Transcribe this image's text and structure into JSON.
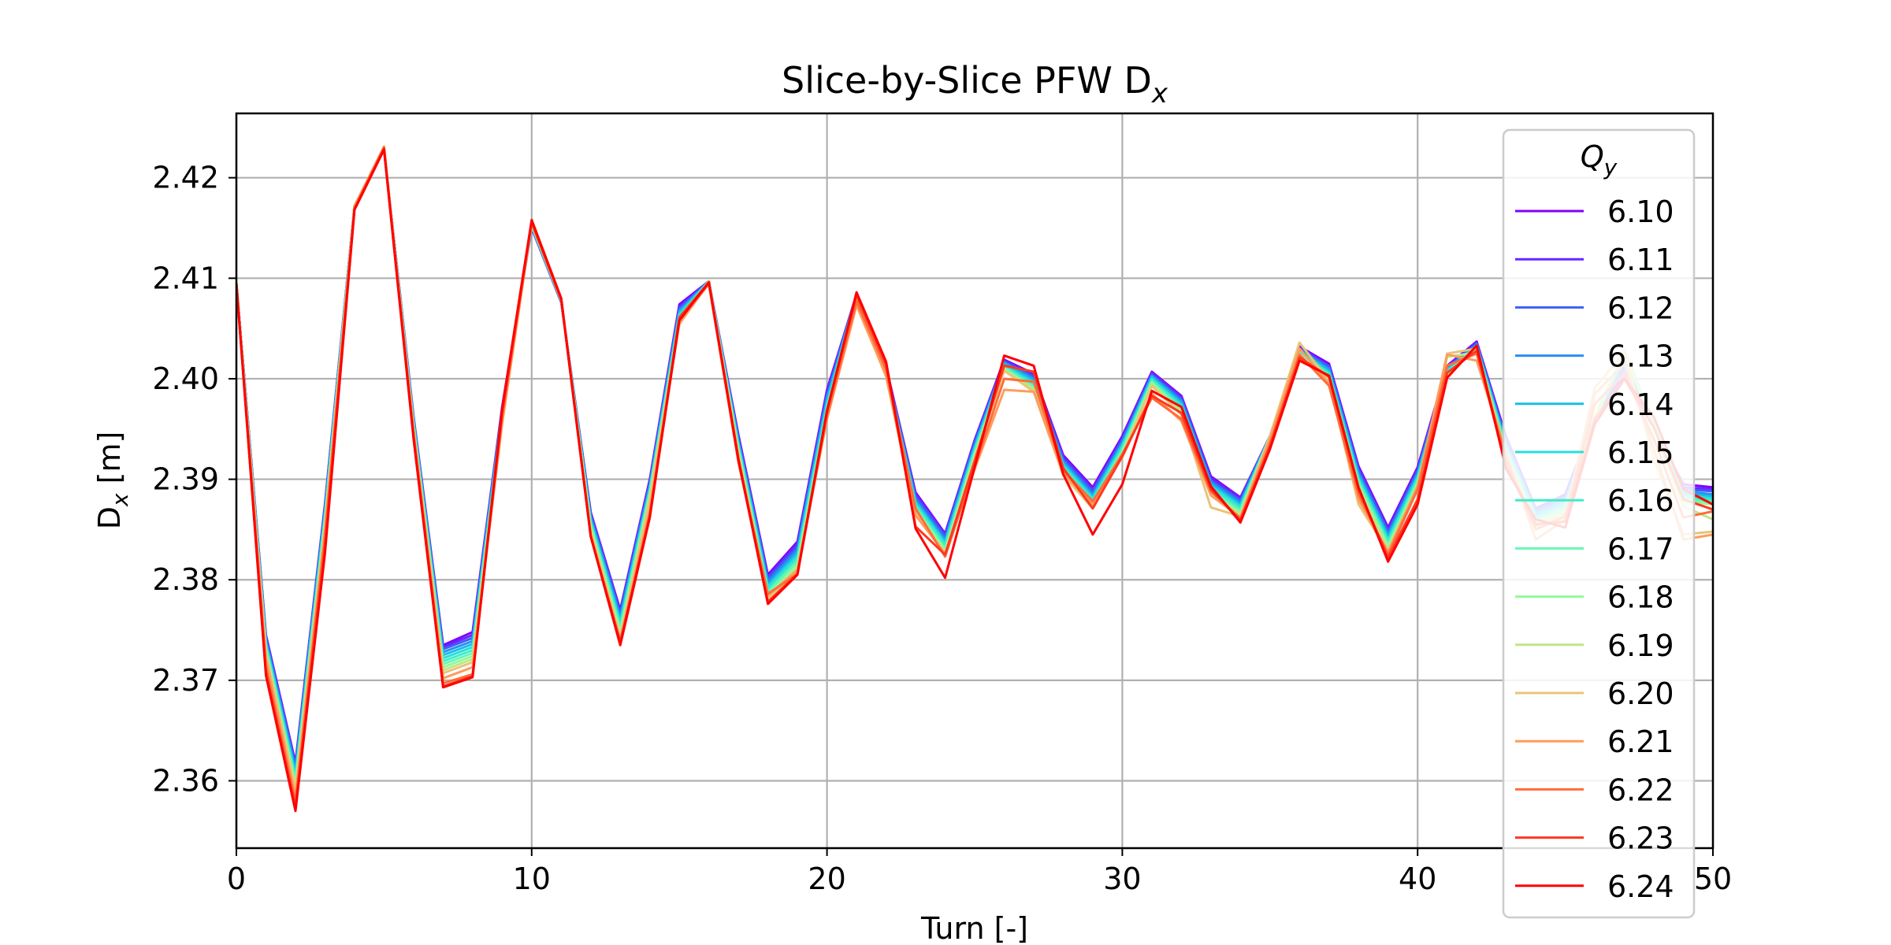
{
  "chart_data": {
    "type": "line",
    "title": "Slice-by-Slice PFW D",
    "title_sub": "x",
    "xlabel": "Turn [-]",
    "ylabel_main": "D",
    "ylabel_sub": "x",
    "ylabel_unit": " [m]",
    "xlim": [
      0,
      50
    ],
    "ylim": [
      2.3533,
      2.4264
    ],
    "xticks": [
      0,
      10,
      20,
      30,
      40,
      50
    ],
    "yticks": [
      2.36,
      2.37,
      2.38,
      2.39,
      2.4,
      2.41,
      2.42
    ],
    "ytick_labels": [
      "2.36",
      "2.37",
      "2.38",
      "2.39",
      "2.40",
      "2.41",
      "2.42"
    ],
    "grid": true,
    "legend": {
      "title_main": "Q",
      "title_sub": "y",
      "placement": "top-right"
    },
    "x": [
      0,
      1,
      2,
      3,
      4,
      5,
      6,
      7,
      8,
      9,
      10,
      11,
      12,
      13,
      14,
      15,
      16,
      17,
      18,
      19,
      20,
      21,
      22,
      23,
      24,
      25,
      26,
      27,
      28,
      29,
      30,
      31,
      32,
      33,
      34,
      35,
      36,
      37,
      38,
      39,
      40,
      41,
      42,
      43,
      44,
      45,
      46,
      47,
      48,
      49,
      50
    ],
    "series": [
      {
        "name": "6.10",
        "color": "#8000ff",
        "values": [
          2.4095,
          2.3745,
          2.3618,
          2.3875,
          2.4172,
          2.4228,
          2.3962,
          2.3735,
          2.3748,
          2.3972,
          2.415,
          2.4076,
          2.3867,
          2.377,
          2.39,
          2.4074,
          2.4097,
          2.3944,
          2.3805,
          2.3838,
          2.3989,
          2.4084,
          2.4012,
          2.3887,
          2.3846,
          2.3939,
          2.4019,
          2.4005,
          2.3924,
          2.3892,
          2.3943,
          2.4007,
          2.3983,
          2.3903,
          2.3882,
          2.3943,
          2.4032,
          2.4015,
          2.3913,
          2.3852,
          2.3912,
          2.4013,
          2.4037,
          2.3942,
          2.3871,
          2.3885,
          2.3962,
          2.4001,
          2.3951,
          2.3895,
          2.3892
        ]
      },
      {
        "name": "6.11",
        "color": "#6a25fe",
        "values": [
          2.4095,
          2.3744,
          2.3617,
          2.3874,
          2.4172,
          2.4228,
          2.3961,
          2.3733,
          2.3745,
          2.3971,
          2.415,
          2.4076,
          2.3866,
          2.3769,
          2.3898,
          2.4072,
          2.4097,
          2.3942,
          2.3803,
          2.3836,
          2.3987,
          2.4084,
          2.4011,
          2.3885,
          2.3845,
          2.3938,
          2.4018,
          2.4004,
          2.3922,
          2.389,
          2.3941,
          2.4006,
          2.3982,
          2.3901,
          2.3881,
          2.3943,
          2.4031,
          2.4013,
          2.3911,
          2.385,
          2.391,
          2.4012,
          2.4036,
          2.394,
          2.387,
          2.3883,
          2.3961,
          2.4006,
          2.3952,
          2.3892,
          2.389
        ]
      },
      {
        "name": "6.12",
        "color": "#3e5ef8",
        "values": [
          2.4095,
          2.3742,
          2.3614,
          2.3872,
          2.4172,
          2.4229,
          2.396,
          2.3731,
          2.3742,
          2.397,
          2.4151,
          2.4077,
          2.3864,
          2.3766,
          2.3896,
          2.407,
          2.4097,
          2.394,
          2.3801,
          2.3833,
          2.3984,
          2.4084,
          2.401,
          2.3883,
          2.3843,
          2.3936,
          2.4017,
          2.4002,
          2.392,
          2.3888,
          2.3939,
          2.4004,
          2.398,
          2.3899,
          2.3879,
          2.3943,
          2.403,
          2.4012,
          2.3909,
          2.3848,
          2.3908,
          2.4011,
          2.4035,
          2.3938,
          2.3869,
          2.3881,
          2.3961,
          2.4011,
          2.3953,
          2.389,
          2.3888
        ]
      },
      {
        "name": "6.13",
        "color": "#2a8ef0",
        "values": [
          2.4095,
          2.374,
          2.3611,
          2.3869,
          2.4172,
          2.4229,
          2.3958,
          2.3728,
          2.3739,
          2.3968,
          2.4151,
          2.4077,
          2.3862,
          2.3763,
          2.3894,
          2.4068,
          2.4097,
          2.3938,
          2.3798,
          2.383,
          2.3981,
          2.4084,
          2.4009,
          2.388,
          2.384,
          2.3934,
          2.4016,
          2.4,
          2.3918,
          2.3885,
          2.3937,
          2.4003,
          2.3978,
          2.3897,
          2.3877,
          2.3943,
          2.4029,
          2.401,
          2.3906,
          2.3845,
          2.3906,
          2.401,
          2.4034,
          2.3936,
          2.3867,
          2.3879,
          2.396,
          2.4015,
          2.3954,
          2.3888,
          2.3885
        ]
      },
      {
        "name": "6.14",
        "color": "#18bde6",
        "values": [
          2.4095,
          2.3738,
          2.3608,
          2.3867,
          2.4172,
          2.4229,
          2.3957,
          2.3725,
          2.3736,
          2.3967,
          2.4152,
          2.4077,
          2.386,
          2.376,
          2.3892,
          2.4066,
          2.4097,
          2.3936,
          2.3795,
          2.3827,
          2.3978,
          2.4084,
          2.4008,
          2.3878,
          2.3838,
          2.3932,
          2.4015,
          2.3998,
          2.3916,
          2.3883,
          2.3935,
          2.4002,
          2.3976,
          2.3895,
          2.3875,
          2.3943,
          2.4028,
          2.4008,
          2.3904,
          2.3843,
          2.3904,
          2.4009,
          2.4033,
          2.3934,
          2.3865,
          2.3877,
          2.396,
          2.4019,
          2.3955,
          2.3886,
          2.3883
        ]
      },
      {
        "name": "6.15",
        "color": "#2adddd",
        "values": [
          2.4095,
          2.3736,
          2.3605,
          2.3864,
          2.4172,
          2.4229,
          2.3956,
          2.3722,
          2.3733,
          2.3965,
          2.4152,
          2.4077,
          2.3858,
          2.3757,
          2.389,
          2.4064,
          2.4097,
          2.3934,
          2.3793,
          2.3824,
          2.3975,
          2.4084,
          2.4007,
          2.3876,
          2.3836,
          2.393,
          2.4013,
          2.3996,
          2.3914,
          2.3881,
          2.3933,
          2.4,
          2.3974,
          2.3893,
          2.3873,
          2.3943,
          2.4027,
          2.4006,
          2.3901,
          2.384,
          2.3902,
          2.4008,
          2.4032,
          2.3932,
          2.3863,
          2.3875,
          2.396,
          2.4023,
          2.3955,
          2.3884,
          2.3881
        ]
      },
      {
        "name": "6.16",
        "color": "#40ecc8",
        "values": [
          2.4095,
          2.3734,
          2.3602,
          2.3862,
          2.4172,
          2.423,
          2.3954,
          2.3719,
          2.373,
          2.3964,
          2.4153,
          2.4078,
          2.3856,
          2.3754,
          2.3888,
          2.4062,
          2.4097,
          2.3932,
          2.379,
          2.3821,
          2.3972,
          2.4084,
          2.4006,
          2.3874,
          2.3834,
          2.3928,
          2.4012,
          2.3994,
          2.3912,
          2.3879,
          2.3931,
          2.3999,
          2.3972,
          2.3891,
          2.3871,
          2.3943,
          2.4026,
          2.4005,
          2.3899,
          2.3838,
          2.39,
          2.4007,
          2.4031,
          2.393,
          2.3861,
          2.3873,
          2.396,
          2.4026,
          2.3956,
          2.3882,
          2.3879
        ]
      },
      {
        "name": "6.17",
        "color": "#66f7b4",
        "values": [
          2.4095,
          2.3732,
          2.3599,
          2.3859,
          2.4172,
          2.423,
          2.3953,
          2.3716,
          2.3727,
          2.3962,
          2.4153,
          2.4078,
          2.3854,
          2.3751,
          2.3886,
          2.406,
          2.4097,
          2.393,
          2.3788,
          2.3818,
          2.3969,
          2.4084,
          2.4005,
          2.3872,
          2.3831,
          2.3926,
          2.4011,
          2.3992,
          2.391,
          2.3877,
          2.3929,
          2.3997,
          2.397,
          2.3888,
          2.3869,
          2.3943,
          2.4025,
          2.4003,
          2.3897,
          2.3835,
          2.3898,
          2.4006,
          2.403,
          2.3928,
          2.3859,
          2.3871,
          2.396,
          2.4028,
          2.3956,
          2.388,
          2.3877
        ]
      },
      {
        "name": "6.18",
        "color": "#92f998",
        "values": [
          2.4095,
          2.373,
          2.3596,
          2.3857,
          2.4172,
          2.423,
          2.3952,
          2.3713,
          2.3724,
          2.396,
          2.4154,
          2.4078,
          2.3852,
          2.3748,
          2.3884,
          2.4058,
          2.4097,
          2.3928,
          2.3785,
          2.3815,
          2.3966,
          2.4084,
          2.4004,
          2.387,
          2.3829,
          2.3924,
          2.401,
          2.399,
          2.3908,
          2.3875,
          2.3927,
          2.3996,
          2.3968,
          2.3886,
          2.3867,
          2.3943,
          2.4024,
          2.4001,
          2.3894,
          2.3833,
          2.3896,
          2.4005,
          2.4029,
          2.3926,
          2.3857,
          2.3869,
          2.396,
          2.4029,
          2.3957,
          2.3878,
          2.3875
        ]
      },
      {
        "name": "6.19",
        "color": "#c0e586",
        "values": [
          2.4095,
          2.3728,
          2.3593,
          2.3854,
          2.4172,
          2.423,
          2.395,
          2.371,
          2.3721,
          2.3959,
          2.4154,
          2.4078,
          2.385,
          2.3745,
          2.3882,
          2.4056,
          2.4097,
          2.3926,
          2.3783,
          2.3812,
          2.3963,
          2.4084,
          2.4003,
          2.3868,
          2.3827,
          2.3922,
          2.4009,
          2.3989,
          2.3906,
          2.3873,
          2.3925,
          2.3994,
          2.3966,
          2.3884,
          2.3865,
          2.3943,
          2.4023,
          2.4,
          2.3892,
          2.383,
          2.3894,
          2.4022,
          2.4026,
          2.3924,
          2.3855,
          2.3867,
          2.3963,
          2.4027,
          2.395,
          2.3873,
          2.386
        ]
      },
      {
        "name": "6.20",
        "color": "#e8c478",
        "values": [
          2.4095,
          2.3726,
          2.359,
          2.3852,
          2.4172,
          2.4231,
          2.3949,
          2.3707,
          2.3718,
          2.3957,
          2.4155,
          2.4079,
          2.3848,
          2.3742,
          2.388,
          2.4054,
          2.4097,
          2.3924,
          2.378,
          2.3809,
          2.396,
          2.4076,
          2.4002,
          2.3866,
          2.3825,
          2.392,
          2.4008,
          2.3987,
          2.3904,
          2.3871,
          2.3923,
          2.3993,
          2.3964,
          2.3872,
          2.3863,
          2.3943,
          2.4036,
          2.3998,
          2.3875,
          2.3828,
          2.3892,
          2.4025,
          2.403,
          2.3922,
          2.3853,
          2.3865,
          2.3991,
          2.4026,
          2.392,
          2.3845,
          2.3848
        ]
      },
      {
        "name": "6.21",
        "color": "#ff9c5c",
        "values": [
          2.4095,
          2.3722,
          2.3584,
          2.3848,
          2.4171,
          2.4231,
          2.3947,
          2.3702,
          2.3713,
          2.3955,
          2.4155,
          2.4079,
          2.3845,
          2.374,
          2.387,
          2.4055,
          2.4095,
          2.392,
          2.3784,
          2.381,
          2.396,
          2.4073,
          2.4003,
          2.3864,
          2.3826,
          2.391,
          2.3989,
          2.3987,
          2.3906,
          2.3875,
          2.3922,
          2.3985,
          2.3958,
          2.3884,
          2.3862,
          2.394,
          2.403,
          2.3995,
          2.388,
          2.3828,
          2.3893,
          2.4024,
          2.4018,
          2.3925,
          2.384,
          2.386,
          2.3985,
          2.4015,
          2.393,
          2.384,
          2.3845
        ]
      },
      {
        "name": "6.22",
        "color": "#ff6c3a",
        "values": [
          2.4095,
          2.3714,
          2.3579,
          2.3842,
          2.417,
          2.423,
          2.3945,
          2.3697,
          2.3706,
          2.3962,
          2.4155,
          2.4078,
          2.3843,
          2.3738,
          2.3865,
          2.406,
          2.4094,
          2.3917,
          2.3786,
          2.3806,
          2.3963,
          2.4077,
          2.4009,
          2.3871,
          2.3823,
          2.3912,
          2.4,
          2.3997,
          2.3909,
          2.3878,
          2.3925,
          2.3981,
          2.396,
          2.3888,
          2.3861,
          2.3935,
          2.4024,
          2.3993,
          2.3885,
          2.3825,
          2.389,
          2.4013,
          2.4025,
          2.392,
          2.385,
          2.3863,
          2.3975,
          2.4005,
          2.394,
          2.3862,
          2.3868
        ]
      },
      {
        "name": "6.23",
        "color": "#ff3820",
        "values": [
          2.4095,
          2.3708,
          2.3574,
          2.3834,
          2.4169,
          2.4229,
          2.3943,
          2.3694,
          2.3704,
          2.3966,
          2.4156,
          2.4079,
          2.3843,
          2.3738,
          2.3864,
          2.4061,
          2.4096,
          2.3918,
          2.3778,
          2.3806,
          2.3968,
          2.4083,
          2.4014,
          2.3853,
          2.3825,
          2.3918,
          2.4013,
          2.4007,
          2.3911,
          2.3871,
          2.3923,
          2.3983,
          2.3966,
          2.389,
          2.3859,
          2.3933,
          2.4021,
          2.4002,
          2.389,
          2.3822,
          2.388,
          2.4006,
          2.4028,
          2.3913,
          2.3855,
          2.3858,
          2.396,
          2.4,
          2.3952,
          2.388,
          2.387
        ]
      },
      {
        "name": "6.24",
        "color": "#ff0000",
        "values": [
          2.4095,
          2.3705,
          2.357,
          2.3826,
          2.4168,
          2.4228,
          2.394,
          2.3693,
          2.3703,
          2.397,
          2.4158,
          2.408,
          2.3843,
          2.3735,
          2.3862,
          2.4058,
          2.4096,
          2.392,
          2.3776,
          2.3805,
          2.3968,
          2.4086,
          2.4017,
          2.3851,
          2.3802,
          2.3912,
          2.4023,
          2.4013,
          2.3905,
          2.3845,
          2.3895,
          2.3988,
          2.3972,
          2.3893,
          2.3857,
          2.393,
          2.4018,
          2.4003,
          2.3892,
          2.3818,
          2.3875,
          2.4001,
          2.4033,
          2.391,
          2.386,
          2.3852,
          2.3955,
          2.4,
          2.3962,
          2.389,
          2.3875
        ]
      }
    ]
  }
}
